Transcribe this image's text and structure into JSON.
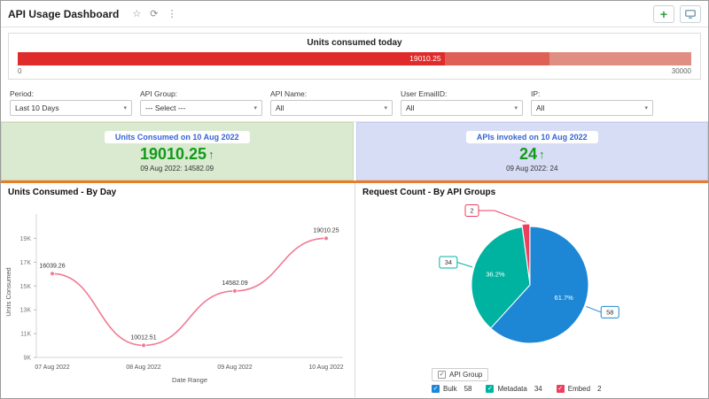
{
  "header": {
    "title": "API Usage Dashboard",
    "add_button": "+",
    "icons": {
      "star": "☆",
      "refresh": "⟳",
      "more": "⋮"
    }
  },
  "gauge": {
    "title": "Units consumed today",
    "value": 19010.25,
    "value_label": "19010.25",
    "max": 30000,
    "min_label": "0",
    "max_label": "30000",
    "segments": [
      {
        "to": 19010.25,
        "color": "#e02b2b"
      },
      {
        "to": 23700,
        "color": "#df6156"
      },
      {
        "to": 30000,
        "color": "#e08d82"
      }
    ]
  },
  "filters": [
    {
      "label": "Period:",
      "value": "Last 10 Days"
    },
    {
      "label": "API Group:",
      "value": "--- Select ---"
    },
    {
      "label": "API Name:",
      "value": "All"
    },
    {
      "label": "User EmailID:",
      "value": "All"
    },
    {
      "label": "IP:",
      "value": "All"
    }
  ],
  "kpis": [
    {
      "title": "Units Consumed on 10 Aug 2022",
      "value": "19010.25",
      "arrow": "↑",
      "previous": "09 Aug 2022: 14582.09",
      "bg": "#d9ead0",
      "border": "#c6dcb6",
      "accent": "#129a1a",
      "title_color": "#3565d4"
    },
    {
      "title": "APIs invoked on 10 Aug 2022",
      "value": "24",
      "arrow": "↑",
      "previous": "09 Aug 2022: 24",
      "bg": "#d8ddf6",
      "border": "#c3cbee",
      "accent": "#129a1a",
      "title_color": "#3565d4"
    }
  ],
  "chart_data": [
    {
      "type": "line",
      "title": "Units Consumed - By Day",
      "x": [
        "07 Aug 2022",
        "08 Aug 2022",
        "09 Aug 2022",
        "10 Aug 2022"
      ],
      "values": [
        16039.26,
        10012.51,
        14582.09,
        19010.25
      ],
      "labels": [
        "16039.26",
        "10012.51",
        "14582.09",
        "19010.25"
      ],
      "xlabel": "Date Range",
      "ylabel": "Units Consumed",
      "ylim": [
        9000,
        20000
      ],
      "yticks": [
        9000,
        11000,
        13000,
        15000,
        17000,
        19000
      ],
      "ytick_labels": [
        "9K",
        "11K",
        "13K",
        "15K",
        "17K",
        "19K"
      ],
      "line_color": "#f07a93",
      "grid": false,
      "legend": false
    },
    {
      "type": "pie",
      "title": "Request Count - By API Groups",
      "legend_title": "API Group",
      "legend_position": "bottom",
      "slices": [
        {
          "name": "Bulk",
          "value": 58,
          "pct": 61.7,
          "pct_label": "61.7%",
          "color": "#1e87d5",
          "callout": "58"
        },
        {
          "name": "Metadata",
          "value": 34,
          "pct": 36.2,
          "pct_label": "36.2%",
          "color": "#00b3a0",
          "callout": "34"
        },
        {
          "name": "Embed",
          "value": 2,
          "pct": 2.1,
          "pct_label": "",
          "color": "#ec3f5e",
          "callout": "2"
        }
      ]
    }
  ]
}
